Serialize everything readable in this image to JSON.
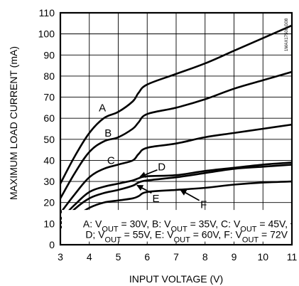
{
  "chart_data": {
    "type": "line",
    "title": "",
    "xlabel": "INPUT VOLTAGE (V)",
    "ylabel": "MAXIMUM LOAD CURRENT (mA)",
    "xlim": [
      3,
      11
    ],
    "ylim": [
      0,
      110
    ],
    "xticks": [
      "3",
      "4",
      "5",
      "6",
      "7",
      "8",
      "9",
      "10",
      "11"
    ],
    "yticks": [
      "0",
      "10",
      "20",
      "30",
      "40",
      "50",
      "60",
      "70",
      "80",
      "90",
      "100",
      "110"
    ],
    "grid": true,
    "series": [
      {
        "name": "A",
        "x": [
          3,
          3.5,
          4,
          4.5,
          5,
          5.5,
          5.7,
          6,
          7,
          8,
          9,
          10,
          11
        ],
        "y": [
          29,
          42,
          53,
          60,
          63,
          68,
          72,
          76,
          81,
          86,
          92,
          98,
          104
        ]
      },
      {
        "name": "B",
        "x": [
          3,
          3.5,
          4,
          4.5,
          5,
          5.5,
          5.7,
          6,
          7,
          8,
          9,
          10,
          11
        ],
        "y": [
          22,
          34,
          44,
          49,
          51,
          55,
          58,
          62,
          65,
          69,
          74,
          78,
          82
        ]
      },
      {
        "name": "C",
        "x": [
          3,
          3.5,
          4,
          4.5,
          5,
          5.5,
          5.7,
          6,
          7,
          8,
          9,
          10,
          11
        ],
        "y": [
          15,
          24,
          32,
          36,
          38,
          40,
          43,
          46,
          48,
          51,
          53,
          55,
          57
        ]
      },
      {
        "name": "D",
        "x": [
          3,
          3.5,
          4,
          4.5,
          5,
          5.5,
          5.7,
          6,
          7,
          8,
          9,
          10,
          11
        ],
        "y": [
          12,
          19,
          25,
          27.5,
          29,
          30.5,
          31.5,
          32.5,
          33,
          35,
          36.5,
          38,
          39
        ]
      },
      {
        "name": "E",
        "x": [
          3,
          3.5,
          4,
          4.5,
          5,
          5.5,
          5.7,
          6,
          7,
          8,
          9,
          10,
          11
        ],
        "y": [
          10,
          17,
          22,
          24.5,
          26,
          28,
          29.5,
          30.5,
          32,
          34,
          36,
          37,
          38
        ]
      },
      {
        "name": "F",
        "x": [
          3,
          3.5,
          4,
          4.5,
          5,
          5.5,
          5.7,
          6,
          7,
          8,
          9,
          10,
          11
        ],
        "y": [
          8,
          13,
          17.5,
          20,
          21,
          22,
          23,
          25,
          26,
          27,
          28.5,
          29.5,
          30
        ]
      }
    ],
    "curve_labels": [
      {
        "text": "A",
        "x": 4.45,
        "y": 65
      },
      {
        "text": "B",
        "x": 4.65,
        "y": 53
      },
      {
        "text": "C",
        "x": 4.75,
        "y": 40
      },
      {
        "text": "D",
        "x": 6.5,
        "y": 37
      },
      {
        "text": "E",
        "x": 6.3,
        "y": 22
      },
      {
        "text": "F",
        "x": 7.95,
        "y": 19
      }
    ],
    "legend_lines": [
      "A: VOUT = 30V, B: VOUT = 35V, C: VOUT = 45V,",
      "D; VOUT = 55V, E: VOUT = 60V, F: VOUT = 72V"
    ],
    "watermark": "1MAX17500 G08"
  }
}
